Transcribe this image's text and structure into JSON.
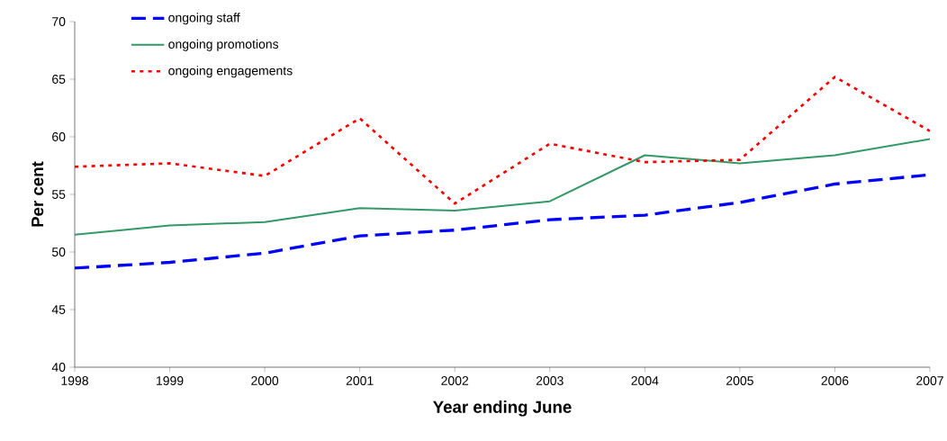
{
  "chart_data": {
    "type": "line",
    "xlabel": "Year ending June",
    "ylabel": "Per cent",
    "categories": [
      "1998",
      "1999",
      "2000",
      "2001",
      "2002",
      "2003",
      "2004",
      "2005",
      "2006",
      "2007"
    ],
    "ylim": [
      40,
      70
    ],
    "yticks": [
      40,
      45,
      50,
      55,
      60,
      65,
      70
    ],
    "legend": "top left",
    "series": [
      {
        "name": "ongoing staff",
        "color": "#0000ff",
        "line_style": "dashed",
        "values": [
          48.6,
          49.1,
          49.9,
          51.4,
          51.9,
          52.8,
          53.2,
          54.3,
          55.9,
          56.7
        ]
      },
      {
        "name": "ongoing promotions",
        "color": "#339966",
        "line_style": "solid",
        "values": [
          51.5,
          52.3,
          52.6,
          53.8,
          53.6,
          54.4,
          58.4,
          57.7,
          58.4,
          59.8
        ]
      },
      {
        "name": "ongoing engagements",
        "color": "#ff0000",
        "line_style": "dotted",
        "values": [
          57.4,
          57.7,
          56.6,
          61.6,
          54.2,
          59.4,
          57.8,
          58.0,
          65.2,
          60.5
        ]
      }
    ]
  }
}
